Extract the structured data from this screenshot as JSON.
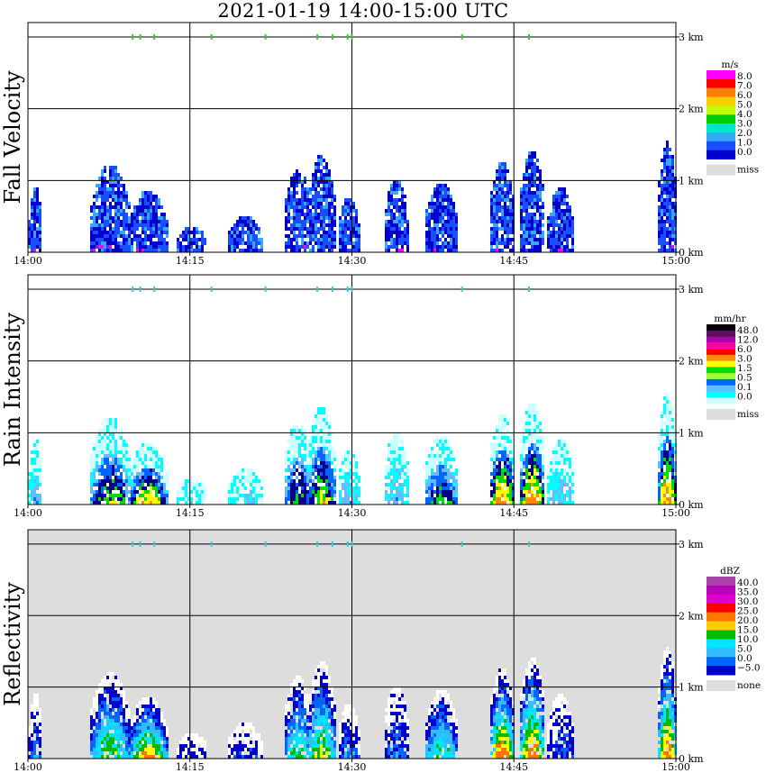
{
  "title": "2021-01-19   14:00-15:00 UTC",
  "chart_data": [
    {
      "type": "heatmap",
      "ylabel": "Fall Velocity",
      "xticks": [
        "14:00",
        "14:15",
        "14:30",
        "14:45",
        "15:00"
      ],
      "yticks": [
        "0 km",
        "1 km",
        "2 km",
        "3 km"
      ],
      "ylim_km": [
        0,
        3.2
      ],
      "background": "#ffffff",
      "legend": {
        "unit": "m/s",
        "labels": [
          "8.0",
          "7.0",
          "6.0",
          "5.0",
          "4.0",
          "3.0",
          "2.0",
          "1.0",
          "0.0"
        ],
        "colors": [
          "#ff00ff",
          "#ff0000",
          "#ff7f00",
          "#ffcc00",
          "#bfff00",
          "#00cc00",
          "#00e5c8",
          "#33aaff",
          "#1a4fff",
          "#0000cc"
        ],
        "miss_label": "miss",
        "miss_color": "#dddddd"
      },
      "palette": [
        "#0000cc",
        "#1a4fff",
        "#33aaff",
        "#ff00ff"
      ],
      "rain_markers_min": [
        9.7,
        10.4,
        11.7,
        17,
        22,
        26.8,
        28.2,
        29.6,
        30,
        40.2,
        46.4
      ]
    },
    {
      "type": "heatmap",
      "ylabel": "Rain Intensity",
      "xticks": [
        "14:00",
        "14:15",
        "14:30",
        "14:45",
        "15:00"
      ],
      "yticks": [
        "0 km",
        "1 km",
        "2 km",
        "3 km"
      ],
      "ylim_km": [
        0,
        3.2
      ],
      "background": "#ffffff",
      "legend": {
        "unit": "mm/hr",
        "labels": [
          "48.0",
          "12.0",
          "6.0",
          "3.0",
          "1.5",
          "0.5",
          "0.1",
          "0.0"
        ],
        "colors": [
          "#000000",
          "#5a0f5a",
          "#aa00aa",
          "#ff00aa",
          "#ff0000",
          "#ff8c00",
          "#ffff00",
          "#00dd00",
          "#99ff33",
          "#0066ff",
          "#66bbff",
          "#00ffff",
          "#ccffff"
        ],
        "miss_label": "miss",
        "miss_color": "#dddddd"
      },
      "palette": [
        "#ccffff",
        "#00ffff",
        "#66bbff",
        "#0066ff",
        "#00008b",
        "#00dd00",
        "#ffff00",
        "#ff8c00"
      ],
      "rain_markers_min": [
        9.7,
        10.4,
        11.7,
        17,
        22,
        26.8,
        28.2,
        29.6,
        30,
        40.2,
        46.4
      ]
    },
    {
      "type": "heatmap",
      "ylabel": "Reflectivity",
      "xticks": [
        "14:00",
        "14:15",
        "14:30",
        "14:45",
        "15:00"
      ],
      "yticks": [
        "0 km",
        "1 km",
        "2 km",
        "3 km"
      ],
      "ylim_km": [
        0,
        3.2
      ],
      "background": "#dddddd",
      "legend": {
        "unit": "dBZ",
        "labels": [
          "40.0",
          "35.0",
          "30.0",
          "25.0",
          "20.0",
          "15.0",
          "10.0",
          "5.0",
          "0.0",
          "−5.0"
        ],
        "colors": [
          "#aa44aa",
          "#bb00bb",
          "#dd00cc",
          "#ff0000",
          "#ff7700",
          "#ffcc00",
          "#00bb00",
          "#00e5ff",
          "#33bbff",
          "#0066ff",
          "#0000cc"
        ],
        "miss_label": "none",
        "miss_color": "#dddddd"
      },
      "palette": [
        "#ffffff",
        "#0000cc",
        "#0066ff",
        "#33bbff",
        "#00e5ff",
        "#00bb00",
        "#ffff00",
        "#ff7700"
      ],
      "rain_markers_min": [
        9.7,
        10.4,
        11.7,
        17,
        22,
        26.8,
        28.2,
        29.6,
        30,
        40.2,
        46.4
      ]
    }
  ],
  "echo_cells": [
    {
      "t0": 0.0,
      "t1": 1.2,
      "top_km": 0.95,
      "peak": 0.35
    },
    {
      "t0": 5.6,
      "t1": 9.4,
      "top_km": 1.25,
      "peak": 0.75
    },
    {
      "t0": 9.2,
      "t1": 12.8,
      "top_km": 0.9,
      "peak": 0.9
    },
    {
      "t0": 13.6,
      "t1": 16.5,
      "top_km": 0.4,
      "peak": 0.2
    },
    {
      "t0": 18.4,
      "t1": 21.6,
      "top_km": 0.55,
      "peak": 0.25
    },
    {
      "t0": 23.6,
      "t1": 26.2,
      "top_km": 1.2,
      "peak": 0.7
    },
    {
      "t0": 25.8,
      "t1": 28.4,
      "top_km": 1.4,
      "peak": 0.8
    },
    {
      "t0": 28.6,
      "t1": 30.6,
      "top_km": 0.8,
      "peak": 0.35
    },
    {
      "t0": 32.8,
      "t1": 35.2,
      "top_km": 1.05,
      "peak": 0.35
    },
    {
      "t0": 36.6,
      "t1": 39.7,
      "top_km": 1.0,
      "peak": 0.7
    },
    {
      "t0": 42.6,
      "t1": 45.0,
      "top_km": 1.3,
      "peak": 1.0
    },
    {
      "t0": 45.4,
      "t1": 47.8,
      "top_km": 1.45,
      "peak": 1.0
    },
    {
      "t0": 48.0,
      "t1": 50.4,
      "top_km": 0.95,
      "peak": 0.3
    },
    {
      "t0": 58.2,
      "t1": 60.0,
      "top_km": 1.6,
      "peak": 1.0
    }
  ]
}
